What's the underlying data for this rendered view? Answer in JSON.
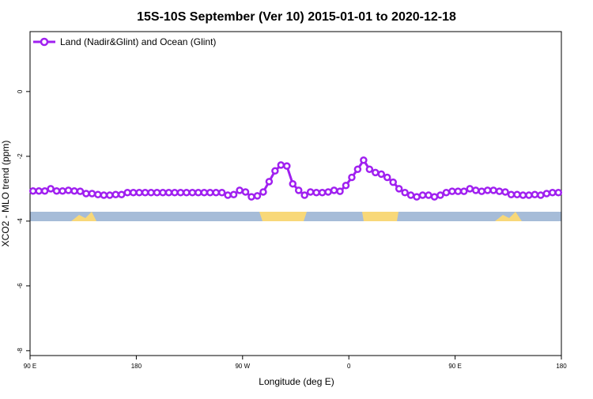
{
  "chart_data": {
    "type": "line",
    "title": "15S-10S September (Ver 10)   2015-01-01 to 2020-12-18",
    "x_label": "Longitude (deg E)",
    "y_label": "XCO2 - MLO trend (ppm)",
    "x": [
      92.5,
      97.5,
      102.5,
      107.5,
      112.5,
      117.5,
      122.5,
      127.5,
      132.5,
      137.5,
      142.5,
      147.5,
      152.5,
      157.5,
      162.5,
      167.5,
      172.5,
      177.5,
      182.5,
      187.5,
      192.5,
      197.5,
      202.5,
      207.5,
      212.5,
      217.5,
      222.5,
      227.5,
      232.5,
      237.5,
      242.5,
      247.5,
      252.5,
      257.5,
      262.5,
      267.5,
      272.5,
      277.5,
      282.5,
      287.5,
      292.5,
      297.5,
      302.5,
      307.5,
      312.5,
      317.5,
      322.5,
      327.5,
      332.5,
      337.5,
      342.5,
      347.5,
      352.5,
      357.5,
      362.5,
      367.5,
      372.5,
      377.5,
      382.5,
      387.5,
      392.5,
      397.5,
      402.5,
      407.5,
      412.5,
      417.5,
      422.5,
      427.5,
      432.5,
      437.5,
      442.5,
      447.5,
      452.5,
      457.5,
      462.5,
      467.5,
      472.5,
      477.5,
      482.5,
      487.5,
      492.5,
      497.5,
      502.5,
      507.5,
      512.5,
      517.5,
      522.5,
      527.5,
      532.5,
      537.5
    ],
    "series": [
      {
        "name": "Land (Nadir&Glint) and Ocean (Glint)",
        "color": "#a020f0",
        "values": [
          -3.07,
          -3.07,
          -3.07,
          -3.0,
          -3.07,
          -3.07,
          -3.05,
          -3.07,
          -3.08,
          -3.15,
          -3.15,
          -3.18,
          -3.2,
          -3.2,
          -3.18,
          -3.18,
          -3.12,
          -3.12,
          -3.12,
          -3.12,
          -3.12,
          -3.12,
          -3.12,
          -3.12,
          -3.12,
          -3.12,
          -3.12,
          -3.12,
          -3.12,
          -3.12,
          -3.12,
          -3.12,
          -3.12,
          -3.2,
          -3.18,
          -3.05,
          -3.1,
          -3.25,
          -3.22,
          -3.1,
          -2.78,
          -2.45,
          -2.27,
          -2.3,
          -2.85,
          -3.05,
          -3.2,
          -3.1,
          -3.12,
          -3.12,
          -3.1,
          -3.05,
          -3.08,
          -2.9,
          -2.65,
          -2.4,
          -2.12,
          -2.4,
          -2.5,
          -2.55,
          -2.65,
          -2.8,
          -3.0,
          -3.12,
          -3.2,
          -3.25,
          -3.2,
          -3.2,
          -3.25,
          -3.2,
          -3.12,
          -3.08,
          -3.08,
          -3.08,
          -3.0,
          -3.05,
          -3.08,
          -3.05,
          -3.05,
          -3.08,
          -3.1,
          -3.18,
          -3.18,
          -3.2,
          -3.2,
          -3.18,
          -3.2,
          -3.15,
          -3.12,
          -3.12
        ]
      }
    ],
    "xlim": [
      90,
      540
    ],
    "xticks": [
      {
        "value": 90,
        "label": "90 E"
      },
      180,
      {
        "value": 270,
        "label": "90 W"
      },
      {
        "value": 360,
        "label": "0"
      },
      {
        "value": 450,
        "label": "90 E"
      },
      180.0001
    ],
    "ylim": [
      -8.15,
      1.85
    ],
    "yticks": [
      -8,
      -6,
      -4,
      -2,
      0
    ],
    "legend": "top-left"
  }
}
